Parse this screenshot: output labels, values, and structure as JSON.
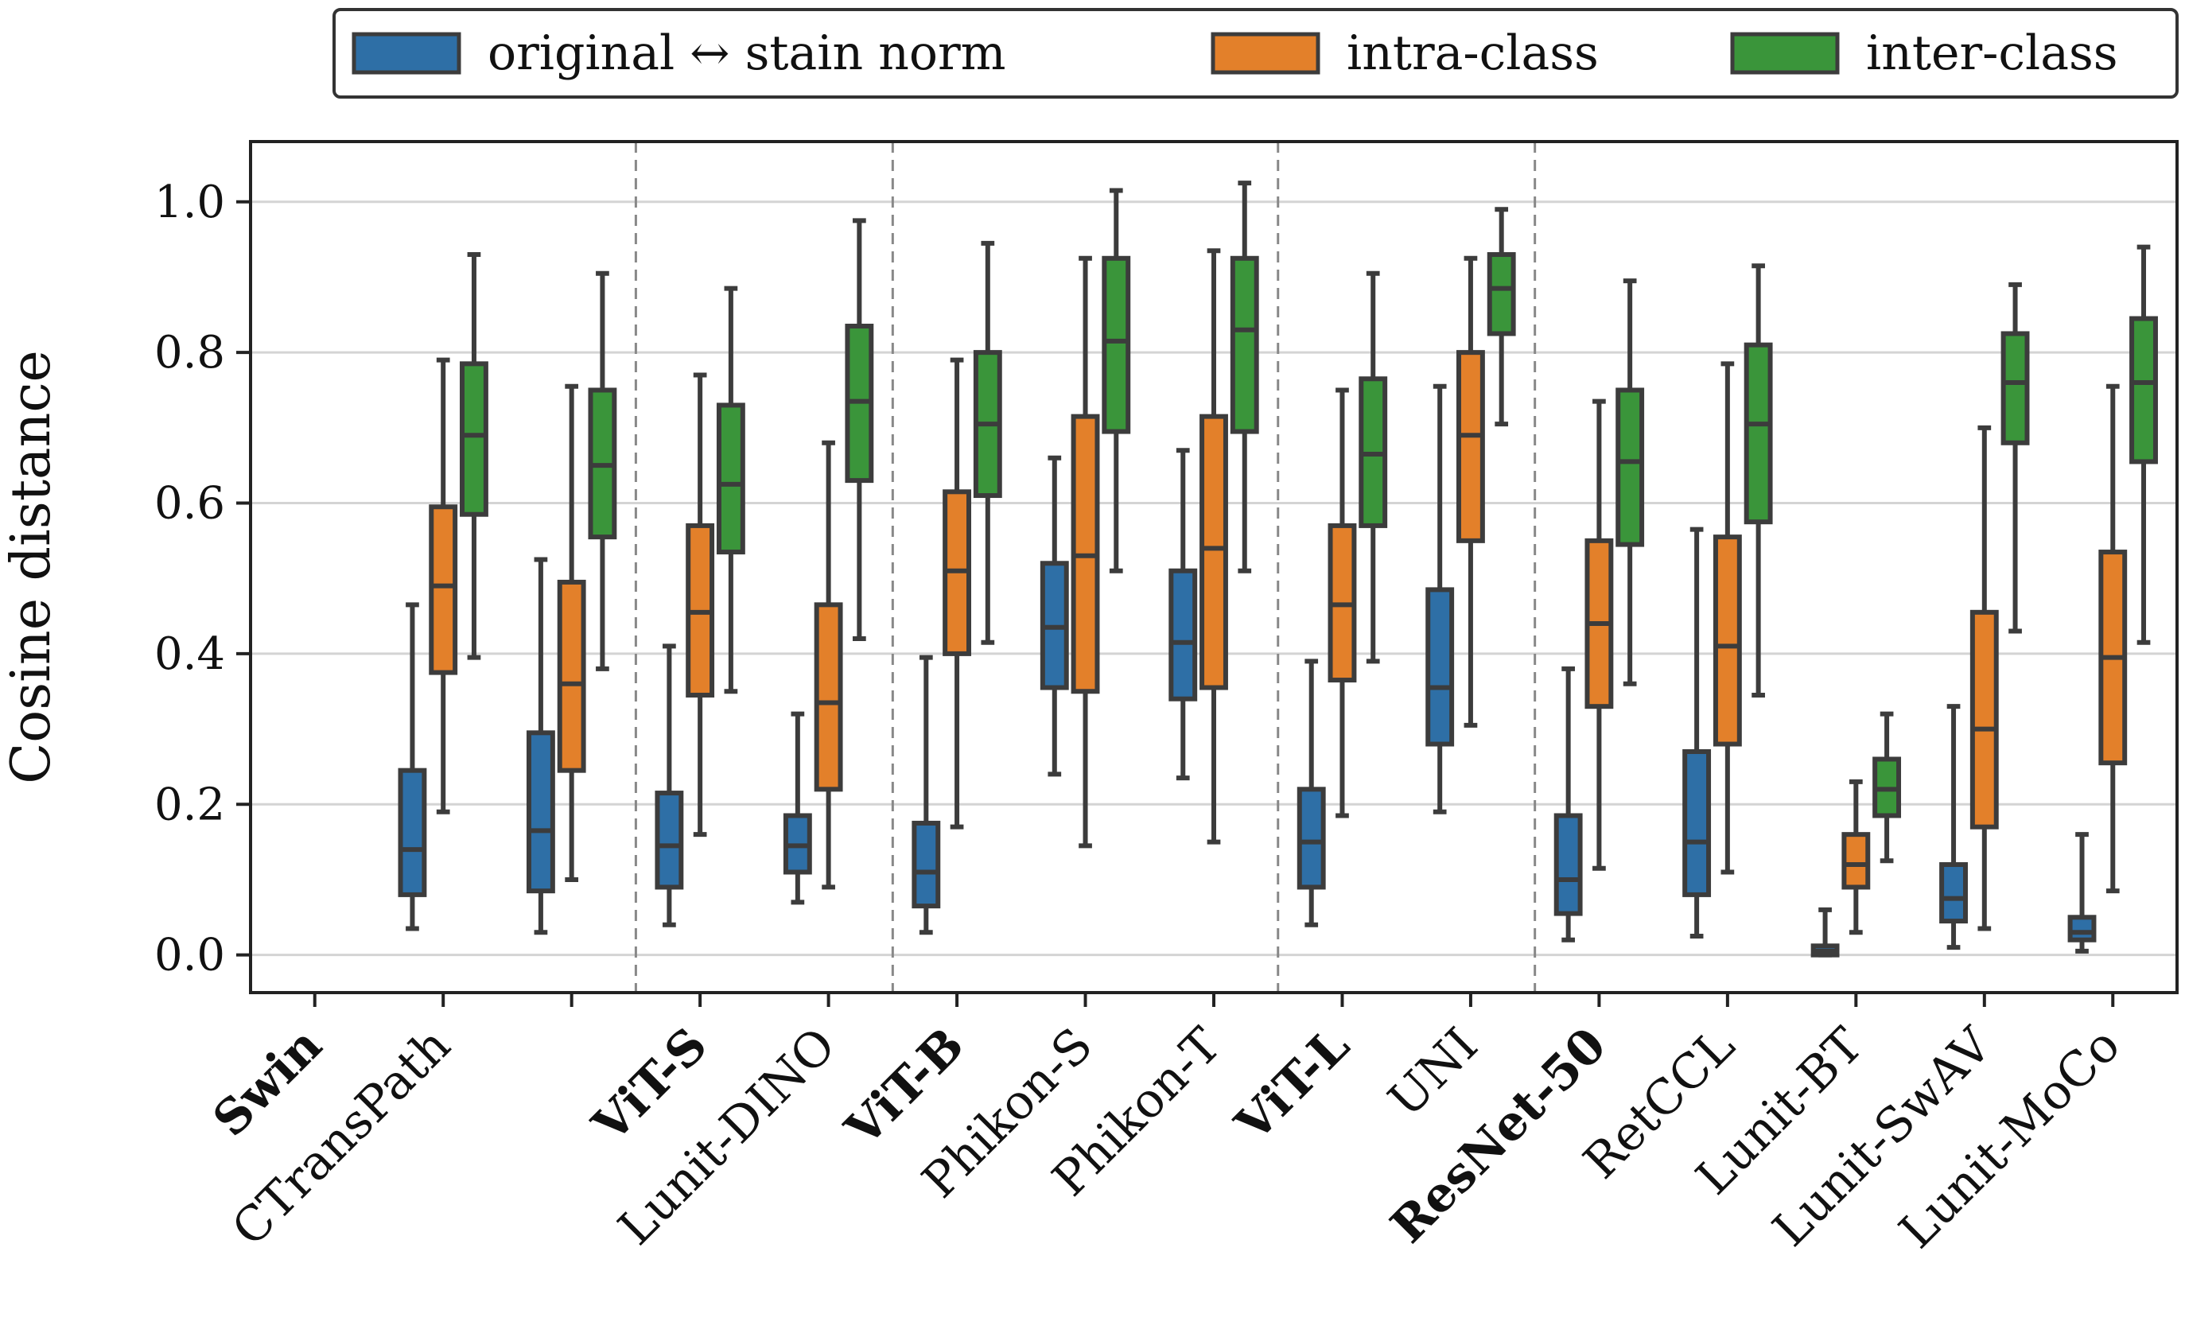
{
  "chart_data": {
    "type": "box",
    "ylabel": "Cosine distance",
    "ylim": [
      -0.05,
      1.08
    ],
    "yticks": [
      "0.0",
      "0.2",
      "0.4",
      "0.6",
      "0.8",
      "1.0"
    ],
    "ytick_values": [
      0.0,
      0.2,
      0.4,
      0.6,
      0.8,
      1.0
    ],
    "grid": "horizontal",
    "legend_position": "top",
    "series": [
      {
        "name": "original ↔ stain norm",
        "color": "#2e6fa6"
      },
      {
        "name": "intra-class",
        "color": "#e3802a"
      },
      {
        "name": "inter-class",
        "color": "#3a953a"
      }
    ],
    "groups": [
      {
        "label": "Swin",
        "bold": true,
        "models": [
          {
            "label": "Swin",
            "bold": true,
            "boxes": null
          },
          {
            "label": "CTransPath",
            "bold": false,
            "boxes": [
              {
                "whislo": 0.035,
                "q1": 0.08,
                "med": 0.14,
                "q3": 0.245,
                "whishi": 0.465
              },
              {
                "whislo": 0.19,
                "q1": 0.375,
                "med": 0.49,
                "q3": 0.595,
                "whishi": 0.79
              },
              {
                "whislo": 0.395,
                "q1": 0.585,
                "med": 0.69,
                "q3": 0.785,
                "whishi": 0.93
              }
            ]
          },
          {
            "label": "",
            "bold": false,
            "boxes": [
              {
                "whislo": 0.03,
                "q1": 0.085,
                "med": 0.165,
                "q3": 0.295,
                "whishi": 0.525
              },
              {
                "whislo": 0.1,
                "q1": 0.245,
                "med": 0.36,
                "q3": 0.495,
                "whishi": 0.755
              },
              {
                "whislo": 0.38,
                "q1": 0.555,
                "med": 0.65,
                "q3": 0.75,
                "whishi": 0.905
              }
            ]
          }
        ]
      },
      {
        "label": "ViT-S",
        "bold": true,
        "models": [
          {
            "label": "ViT-S",
            "bold": true,
            "boxes": [
              {
                "whislo": 0.04,
                "q1": 0.09,
                "med": 0.145,
                "q3": 0.215,
                "whishi": 0.41
              },
              {
                "whislo": 0.16,
                "q1": 0.345,
                "med": 0.455,
                "q3": 0.57,
                "whishi": 0.77
              },
              {
                "whislo": 0.35,
                "q1": 0.535,
                "med": 0.625,
                "q3": 0.73,
                "whishi": 0.885
              }
            ]
          },
          {
            "label": "Lunit-DINO",
            "bold": false,
            "boxes": [
              {
                "whislo": 0.07,
                "q1": 0.11,
                "med": 0.145,
                "q3": 0.185,
                "whishi": 0.32
              },
              {
                "whislo": 0.09,
                "q1": 0.22,
                "med": 0.335,
                "q3": 0.465,
                "whishi": 0.68
              },
              {
                "whislo": 0.42,
                "q1": 0.63,
                "med": 0.735,
                "q3": 0.835,
                "whishi": 0.975
              }
            ]
          }
        ]
      },
      {
        "label": "ViT-B",
        "bold": true,
        "models": [
          {
            "label": "ViT-B",
            "bold": true,
            "boxes": [
              {
                "whislo": 0.03,
                "q1": 0.065,
                "med": 0.11,
                "q3": 0.175,
                "whishi": 0.395
              },
              {
                "whislo": 0.17,
                "q1": 0.4,
                "med": 0.51,
                "q3": 0.615,
                "whishi": 0.79
              },
              {
                "whislo": 0.415,
                "q1": 0.61,
                "med": 0.705,
                "q3": 0.8,
                "whishi": 0.945
              }
            ]
          },
          {
            "label": "Phikon-S",
            "bold": false,
            "boxes": [
              {
                "whislo": 0.24,
                "q1": 0.355,
                "med": 0.435,
                "q3": 0.52,
                "whishi": 0.66
              },
              {
                "whislo": 0.145,
                "q1": 0.35,
                "med": 0.53,
                "q3": 0.715,
                "whishi": 0.925
              },
              {
                "whislo": 0.51,
                "q1": 0.695,
                "med": 0.815,
                "q3": 0.925,
                "whishi": 1.015
              }
            ]
          },
          {
            "label": "Phikon-T",
            "bold": false,
            "boxes": [
              {
                "whislo": 0.235,
                "q1": 0.34,
                "med": 0.415,
                "q3": 0.51,
                "whishi": 0.67
              },
              {
                "whislo": 0.15,
                "q1": 0.355,
                "med": 0.54,
                "q3": 0.715,
                "whishi": 0.935
              },
              {
                "whislo": 0.51,
                "q1": 0.695,
                "med": 0.83,
                "q3": 0.925,
                "whishi": 1.025
              }
            ]
          }
        ]
      },
      {
        "label": "ViT-L",
        "bold": true,
        "models": [
          {
            "label": "ViT-L",
            "bold": true,
            "boxes": [
              {
                "whislo": 0.04,
                "q1": 0.09,
                "med": 0.15,
                "q3": 0.22,
                "whishi": 0.39
              },
              {
                "whislo": 0.185,
                "q1": 0.365,
                "med": 0.465,
                "q3": 0.57,
                "whishi": 0.75
              },
              {
                "whislo": 0.39,
                "q1": 0.57,
                "med": 0.665,
                "q3": 0.765,
                "whishi": 0.905
              }
            ]
          },
          {
            "label": "UNI",
            "bold": false,
            "boxes": [
              {
                "whislo": 0.19,
                "q1": 0.28,
                "med": 0.355,
                "q3": 0.485,
                "whishi": 0.755
              },
              {
                "whislo": 0.305,
                "q1": 0.55,
                "med": 0.69,
                "q3": 0.8,
                "whishi": 0.925
              },
              {
                "whislo": 0.705,
                "q1": 0.825,
                "med": 0.885,
                "q3": 0.93,
                "whishi": 0.99
              }
            ]
          }
        ]
      },
      {
        "label": "ResNet-50",
        "bold": true,
        "models": [
          {
            "label": "ResNet-50",
            "bold": true,
            "boxes": [
              {
                "whislo": 0.02,
                "q1": 0.055,
                "med": 0.1,
                "q3": 0.185,
                "whishi": 0.38
              },
              {
                "whislo": 0.115,
                "q1": 0.33,
                "med": 0.44,
                "q3": 0.55,
                "whishi": 0.735
              },
              {
                "whislo": 0.36,
                "q1": 0.545,
                "med": 0.655,
                "q3": 0.75,
                "whishi": 0.895
              }
            ]
          },
          {
            "label": "RetCCL",
            "bold": false,
            "boxes": [
              {
                "whislo": 0.025,
                "q1": 0.08,
                "med": 0.15,
                "q3": 0.27,
                "whishi": 0.565
              },
              {
                "whislo": 0.11,
                "q1": 0.28,
                "med": 0.41,
                "q3": 0.555,
                "whishi": 0.785
              },
              {
                "whislo": 0.345,
                "q1": 0.575,
                "med": 0.705,
                "q3": 0.81,
                "whishi": 0.915
              }
            ]
          },
          {
            "label": "Lunit-BT",
            "bold": false,
            "boxes": [
              {
                "whislo": 0.0,
                "q1": 0.0,
                "med": 0.005,
                "q3": 0.012,
                "whishi": 0.06
              },
              {
                "whislo": 0.03,
                "q1": 0.09,
                "med": 0.12,
                "q3": 0.16,
                "whishi": 0.23
              },
              {
                "whislo": 0.125,
                "q1": 0.185,
                "med": 0.22,
                "q3": 0.26,
                "whishi": 0.32
              }
            ]
          },
          {
            "label": "Lunit-SwAV",
            "bold": false,
            "boxes": [
              {
                "whislo": 0.01,
                "q1": 0.045,
                "med": 0.075,
                "q3": 0.12,
                "whishi": 0.33
              },
              {
                "whislo": 0.035,
                "q1": 0.17,
                "med": 0.3,
                "q3": 0.455,
                "whishi": 0.7
              },
              {
                "whislo": 0.43,
                "q1": 0.68,
                "med": 0.76,
                "q3": 0.825,
                "whishi": 0.89
              }
            ]
          },
          {
            "label": "Lunit-MoCo",
            "bold": false,
            "boxes": [
              {
                "whislo": 0.005,
                "q1": 0.02,
                "med": 0.03,
                "q3": 0.05,
                "whishi": 0.16
              },
              {
                "whislo": 0.085,
                "q1": 0.255,
                "med": 0.395,
                "q3": 0.535,
                "whishi": 0.755
              },
              {
                "whislo": 0.415,
                "q1": 0.655,
                "med": 0.76,
                "q3": 0.845,
                "whishi": 0.94
              }
            ]
          }
        ]
      }
    ]
  }
}
